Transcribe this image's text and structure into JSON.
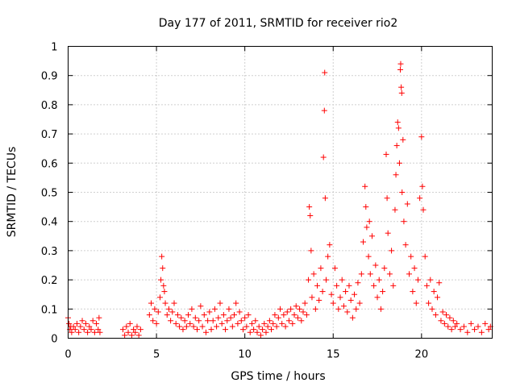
{
  "chart_data": {
    "type": "scatter",
    "title": "Day 177 of 2011, SRMTID for receiver rio2",
    "xlabel": "GPS time / hours",
    "ylabel": "SRMTID / TECUs",
    "xlim": [
      0,
      24
    ],
    "ylim": [
      0,
      1
    ],
    "xticks": [
      0,
      5,
      10,
      15,
      20
    ],
    "xtick_labels": [
      "0",
      "5",
      "10",
      "15",
      "20"
    ],
    "yticks": [
      0,
      0.1,
      0.2,
      0.3,
      0.4,
      0.5,
      0.6,
      0.7,
      0.8,
      0.9,
      1
    ],
    "ytick_labels": [
      "0",
      "0.1",
      "0.2",
      "0.3",
      "0.4",
      "0.5",
      "0.6",
      "0.7",
      "0.8",
      "0.9",
      "1"
    ],
    "grid": true,
    "marker": "+",
    "color": "#ff0000",
    "series": [
      {
        "name": "rio2",
        "points": [
          [
            0.0,
            0.07
          ],
          [
            0.05,
            0.05
          ],
          [
            0.1,
            0.03
          ],
          [
            0.15,
            0.04
          ],
          [
            0.2,
            0.02
          ],
          [
            0.3,
            0.04
          ],
          [
            0.4,
            0.03
          ],
          [
            0.5,
            0.05
          ],
          [
            0.6,
            0.02
          ],
          [
            0.7,
            0.04
          ],
          [
            0.8,
            0.06
          ],
          [
            0.9,
            0.03
          ],
          [
            1.0,
            0.05
          ],
          [
            1.1,
            0.02
          ],
          [
            1.2,
            0.04
          ],
          [
            1.3,
            0.03
          ],
          [
            1.4,
            0.06
          ],
          [
            1.5,
            0.02
          ],
          [
            1.6,
            0.05
          ],
          [
            1.7,
            0.03
          ],
          [
            1.75,
            0.07
          ],
          [
            1.8,
            0.02
          ],
          [
            3.1,
            0.03
          ],
          [
            3.2,
            0.01
          ],
          [
            3.3,
            0.04
          ],
          [
            3.4,
            0.02
          ],
          [
            3.5,
            0.05
          ],
          [
            3.6,
            0.01
          ],
          [
            3.7,
            0.03
          ],
          [
            3.8,
            0.02
          ],
          [
            3.9,
            0.04
          ],
          [
            4.0,
            0.01
          ],
          [
            4.1,
            0.03
          ],
          [
            4.6,
            0.08
          ],
          [
            4.7,
            0.12
          ],
          [
            4.8,
            0.06
          ],
          [
            4.9,
            0.1
          ],
          [
            5.0,
            0.05
          ],
          [
            5.1,
            0.09
          ],
          [
            5.2,
            0.14
          ],
          [
            5.25,
            0.2
          ],
          [
            5.3,
            0.28
          ],
          [
            5.35,
            0.24
          ],
          [
            5.4,
            0.18
          ],
          [
            5.45,
            0.16
          ],
          [
            5.5,
            0.12
          ],
          [
            5.6,
            0.08
          ],
          [
            5.7,
            0.1
          ],
          [
            5.8,
            0.06
          ],
          [
            5.9,
            0.09
          ],
          [
            6.0,
            0.12
          ],
          [
            6.1,
            0.05
          ],
          [
            6.2,
            0.08
          ],
          [
            6.3,
            0.04
          ],
          [
            6.4,
            0.07
          ],
          [
            6.5,
            0.03
          ],
          [
            6.6,
            0.06
          ],
          [
            6.7,
            0.04
          ],
          [
            6.8,
            0.08
          ],
          [
            6.9,
            0.05
          ],
          [
            7.0,
            0.1
          ],
          [
            7.1,
            0.04
          ],
          [
            7.2,
            0.07
          ],
          [
            7.3,
            0.03
          ],
          [
            7.4,
            0.06
          ],
          [
            7.5,
            0.11
          ],
          [
            7.6,
            0.04
          ],
          [
            7.7,
            0.08
          ],
          [
            7.8,
            0.02
          ],
          [
            7.9,
            0.06
          ],
          [
            8.0,
            0.09
          ],
          [
            8.1,
            0.03
          ],
          [
            8.2,
            0.06
          ],
          [
            8.3,
            0.1
          ],
          [
            8.4,
            0.04
          ],
          [
            8.5,
            0.07
          ],
          [
            8.6,
            0.12
          ],
          [
            8.7,
            0.05
          ],
          [
            8.8,
            0.08
          ],
          [
            8.9,
            0.03
          ],
          [
            9.0,
            0.06
          ],
          [
            9.1,
            0.1
          ],
          [
            9.2,
            0.07
          ],
          [
            9.3,
            0.04
          ],
          [
            9.4,
            0.08
          ],
          [
            9.5,
            0.12
          ],
          [
            9.6,
            0.05
          ],
          [
            9.7,
            0.09
          ],
          [
            9.8,
            0.06
          ],
          [
            9.9,
            0.03
          ],
          [
            10.0,
            0.07
          ],
          [
            10.1,
            0.04
          ],
          [
            10.2,
            0.08
          ],
          [
            10.3,
            0.02
          ],
          [
            10.4,
            0.05
          ],
          [
            10.5,
            0.03
          ],
          [
            10.6,
            0.06
          ],
          [
            10.7,
            0.02
          ],
          [
            10.8,
            0.04
          ],
          [
            10.9,
            0.01
          ],
          [
            11.0,
            0.03
          ],
          [
            11.1,
            0.05
          ],
          [
            11.2,
            0.02
          ],
          [
            11.3,
            0.04
          ],
          [
            11.4,
            0.06
          ],
          [
            11.5,
            0.03
          ],
          [
            11.6,
            0.05
          ],
          [
            11.7,
            0.08
          ],
          [
            11.8,
            0.04
          ],
          [
            11.9,
            0.07
          ],
          [
            12.0,
            0.1
          ],
          [
            12.1,
            0.05
          ],
          [
            12.2,
            0.08
          ],
          [
            12.3,
            0.04
          ],
          [
            12.4,
            0.09
          ],
          [
            12.5,
            0.06
          ],
          [
            12.6,
            0.1
          ],
          [
            12.7,
            0.05
          ],
          [
            12.8,
            0.08
          ],
          [
            12.9,
            0.11
          ],
          [
            13.0,
            0.07
          ],
          [
            13.1,
            0.1
          ],
          [
            13.2,
            0.06
          ],
          [
            13.3,
            0.09
          ],
          [
            13.4,
            0.12
          ],
          [
            13.5,
            0.08
          ],
          [
            13.6,
            0.2
          ],
          [
            13.65,
            0.45
          ],
          [
            13.7,
            0.42
          ],
          [
            13.75,
            0.3
          ],
          [
            13.8,
            0.14
          ],
          [
            13.9,
            0.22
          ],
          [
            14.0,
            0.1
          ],
          [
            14.1,
            0.18
          ],
          [
            14.2,
            0.13
          ],
          [
            14.3,
            0.24
          ],
          [
            14.4,
            0.16
          ],
          [
            14.45,
            0.62
          ],
          [
            14.5,
            0.78
          ],
          [
            14.52,
            0.91
          ],
          [
            14.55,
            0.48
          ],
          [
            14.6,
            0.2
          ],
          [
            14.7,
            0.28
          ],
          [
            14.8,
            0.32
          ],
          [
            14.9,
            0.15
          ],
          [
            15.0,
            0.12
          ],
          [
            15.1,
            0.24
          ],
          [
            15.2,
            0.18
          ],
          [
            15.3,
            0.1
          ],
          [
            15.4,
            0.14
          ],
          [
            15.5,
            0.2
          ],
          [
            15.6,
            0.11
          ],
          [
            15.7,
            0.16
          ],
          [
            15.8,
            0.09
          ],
          [
            15.9,
            0.18
          ],
          [
            16.0,
            0.13
          ],
          [
            16.1,
            0.07
          ],
          [
            16.2,
            0.15
          ],
          [
            16.3,
            0.1
          ],
          [
            16.4,
            0.19
          ],
          [
            16.5,
            0.12
          ],
          [
            16.6,
            0.22
          ],
          [
            16.7,
            0.33
          ],
          [
            16.8,
            0.52
          ],
          [
            16.85,
            0.45
          ],
          [
            16.9,
            0.38
          ],
          [
            17.0,
            0.28
          ],
          [
            17.05,
            0.4
          ],
          [
            17.1,
            0.22
          ],
          [
            17.2,
            0.35
          ],
          [
            17.3,
            0.18
          ],
          [
            17.4,
            0.25
          ],
          [
            17.5,
            0.14
          ],
          [
            17.6,
            0.2
          ],
          [
            17.7,
            0.1
          ],
          [
            17.8,
            0.16
          ],
          [
            17.9,
            0.24
          ],
          [
            18.0,
            0.63
          ],
          [
            18.05,
            0.48
          ],
          [
            18.1,
            0.36
          ],
          [
            18.2,
            0.22
          ],
          [
            18.3,
            0.3
          ],
          [
            18.4,
            0.18
          ],
          [
            18.5,
            0.44
          ],
          [
            18.55,
            0.56
          ],
          [
            18.6,
            0.66
          ],
          [
            18.65,
            0.74
          ],
          [
            18.7,
            0.72
          ],
          [
            18.75,
            0.6
          ],
          [
            18.8,
            0.92
          ],
          [
            18.82,
            0.94
          ],
          [
            18.85,
            0.86
          ],
          [
            18.88,
            0.84
          ],
          [
            18.9,
            0.5
          ],
          [
            18.95,
            0.68
          ],
          [
            19.0,
            0.4
          ],
          [
            19.1,
            0.32
          ],
          [
            19.2,
            0.46
          ],
          [
            19.3,
            0.22
          ],
          [
            19.4,
            0.28
          ],
          [
            19.5,
            0.16
          ],
          [
            19.6,
            0.24
          ],
          [
            19.7,
            0.12
          ],
          [
            19.8,
            0.2
          ],
          [
            19.9,
            0.48
          ],
          [
            20.0,
            0.69
          ],
          [
            20.05,
            0.52
          ],
          [
            20.1,
            0.44
          ],
          [
            20.2,
            0.28
          ],
          [
            20.3,
            0.18
          ],
          [
            20.4,
            0.12
          ],
          [
            20.5,
            0.2
          ],
          [
            20.6,
            0.1
          ],
          [
            20.7,
            0.16
          ],
          [
            20.8,
            0.08
          ],
          [
            20.9,
            0.14
          ],
          [
            21.0,
            0.19
          ],
          [
            21.1,
            0.06
          ],
          [
            21.2,
            0.09
          ],
          [
            21.3,
            0.05
          ],
          [
            21.4,
            0.08
          ],
          [
            21.5,
            0.04
          ],
          [
            21.6,
            0.07
          ],
          [
            21.7,
            0.03
          ],
          [
            21.8,
            0.06
          ],
          [
            21.9,
            0.04
          ],
          [
            22.0,
            0.05
          ],
          [
            22.2,
            0.03
          ],
          [
            22.4,
            0.04
          ],
          [
            22.6,
            0.02
          ],
          [
            22.8,
            0.05
          ],
          [
            23.0,
            0.03
          ],
          [
            23.2,
            0.04
          ],
          [
            23.4,
            0.02
          ],
          [
            23.6,
            0.05
          ],
          [
            23.8,
            0.03
          ],
          [
            23.9,
            0.04
          ]
        ]
      }
    ]
  }
}
